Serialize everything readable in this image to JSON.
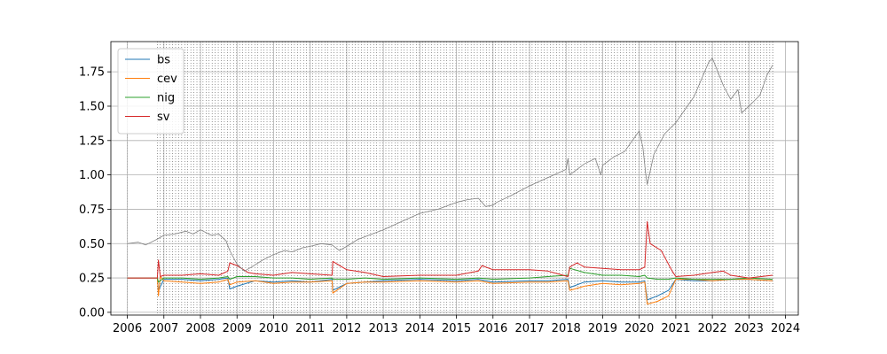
{
  "chart_data": {
    "type": "line",
    "title": "",
    "xlabel": "",
    "ylabel": "",
    "xlim": [
      2005.55,
      2024.35
    ],
    "ylim": [
      -0.02,
      1.97
    ],
    "grid": true,
    "legend_position": "top-left",
    "x_ticks": [
      "2006",
      "2007",
      "2008",
      "2009",
      "2010",
      "2011",
      "2012",
      "2013",
      "2014",
      "2015",
      "2016",
      "2017",
      "2018",
      "2019",
      "2020",
      "2021",
      "2022",
      "2023",
      "2024"
    ],
    "y_ticks": [
      "0.00",
      "0.25",
      "0.50",
      "0.75",
      "1.00",
      "1.25",
      "1.50",
      "1.75"
    ],
    "series": [
      {
        "name": "bs",
        "color": "#1f77b4",
        "x": [
          2006.0,
          2006.82,
          2006.85,
          2007.0,
          2007.5,
          2008.0,
          2008.5,
          2008.75,
          2008.8,
          2009.0,
          2009.5,
          2010.0,
          2010.5,
          2011.0,
          2011.6,
          2011.62,
          2012.0,
          2012.5,
          2013.0,
          2014.0,
          2015.0,
          2015.6,
          2016.0,
          2017.0,
          2017.5,
          2018.05,
          2018.1,
          2018.5,
          2019.0,
          2019.5,
          2020.0,
          2020.15,
          2020.22,
          2020.5,
          2020.8,
          2021.0,
          2021.5,
          2022.0,
          2022.5,
          2023.0,
          2023.65
        ],
        "y": [
          0.25,
          0.25,
          0.16,
          0.24,
          0.24,
          0.23,
          0.24,
          0.25,
          0.17,
          0.19,
          0.23,
          0.22,
          0.23,
          0.22,
          0.24,
          0.16,
          0.21,
          0.22,
          0.23,
          0.24,
          0.23,
          0.24,
          0.22,
          0.23,
          0.23,
          0.24,
          0.18,
          0.22,
          0.23,
          0.22,
          0.22,
          0.23,
          0.09,
          0.12,
          0.16,
          0.24,
          0.23,
          0.23,
          0.24,
          0.24,
          0.23
        ]
      },
      {
        "name": "cev",
        "color": "#ff7f0e",
        "x": [
          2006.0,
          2006.82,
          2006.85,
          2006.9,
          2007.0,
          2007.5,
          2008.0,
          2008.5,
          2008.75,
          2008.8,
          2009.0,
          2009.5,
          2010.0,
          2010.5,
          2011.0,
          2011.6,
          2011.62,
          2012.0,
          2012.5,
          2013.0,
          2014.0,
          2015.0,
          2015.6,
          2016.0,
          2017.0,
          2017.5,
          2018.05,
          2018.1,
          2018.5,
          2019.0,
          2019.5,
          2020.0,
          2020.15,
          2020.22,
          2020.5,
          2020.8,
          2021.0,
          2021.5,
          2022.0,
          2022.5,
          2023.0,
          2023.65
        ],
        "y": [
          0.25,
          0.25,
          0.12,
          0.26,
          0.23,
          0.22,
          0.21,
          0.22,
          0.24,
          0.2,
          0.22,
          0.23,
          0.21,
          0.22,
          0.22,
          0.23,
          0.14,
          0.21,
          0.22,
          0.22,
          0.23,
          0.22,
          0.23,
          0.21,
          0.22,
          0.22,
          0.23,
          0.16,
          0.19,
          0.21,
          0.2,
          0.21,
          0.22,
          0.06,
          0.08,
          0.12,
          0.24,
          0.24,
          0.23,
          0.24,
          0.24,
          0.23
        ]
      },
      {
        "name": "nig",
        "color": "#2ca02c",
        "x": [
          2006.0,
          2006.82,
          2006.85,
          2007.0,
          2007.5,
          2008.0,
          2008.5,
          2008.75,
          2008.8,
          2009.0,
          2009.5,
          2010.0,
          2010.5,
          2011.0,
          2011.6,
          2011.62,
          2012.0,
          2012.5,
          2013.0,
          2014.0,
          2015.0,
          2015.6,
          2016.0,
          2017.0,
          2017.5,
          2018.05,
          2018.1,
          2018.5,
          2019.0,
          2019.5,
          2020.0,
          2020.15,
          2020.22,
          2020.5,
          2020.8,
          2021.0,
          2021.5,
          2022.0,
          2022.5,
          2023.0,
          2023.65
        ],
        "y": [
          0.25,
          0.25,
          0.22,
          0.25,
          0.25,
          0.24,
          0.25,
          0.26,
          0.24,
          0.26,
          0.26,
          0.25,
          0.25,
          0.24,
          0.25,
          0.24,
          0.24,
          0.25,
          0.24,
          0.25,
          0.24,
          0.25,
          0.24,
          0.25,
          0.26,
          0.27,
          0.32,
          0.29,
          0.27,
          0.27,
          0.26,
          0.27,
          0.25,
          0.24,
          0.24,
          0.25,
          0.24,
          0.24,
          0.24,
          0.25,
          0.24
        ]
      },
      {
        "name": "sv",
        "color": "#d62728",
        "x": [
          2006.0,
          2006.82,
          2006.85,
          2006.9,
          2007.0,
          2007.5,
          2008.0,
          2008.5,
          2008.75,
          2008.8,
          2009.0,
          2009.3,
          2009.5,
          2010.0,
          2010.5,
          2011.0,
          2011.6,
          2011.62,
          2012.0,
          2012.5,
          2013.0,
          2014.0,
          2015.0,
          2015.6,
          2015.7,
          2016.0,
          2017.0,
          2017.5,
          2018.05,
          2018.1,
          2018.3,
          2018.5,
          2019.0,
          2019.5,
          2020.0,
          2020.15,
          2020.22,
          2020.3,
          2020.6,
          2020.9,
          2021.0,
          2021.5,
          2022.0,
          2022.3,
          2022.5,
          2023.0,
          2023.65
        ],
        "y": [
          0.25,
          0.25,
          0.38,
          0.26,
          0.27,
          0.27,
          0.28,
          0.27,
          0.3,
          0.36,
          0.34,
          0.29,
          0.28,
          0.27,
          0.29,
          0.28,
          0.27,
          0.37,
          0.31,
          0.29,
          0.26,
          0.27,
          0.27,
          0.3,
          0.34,
          0.31,
          0.31,
          0.3,
          0.26,
          0.33,
          0.36,
          0.33,
          0.32,
          0.31,
          0.31,
          0.33,
          0.66,
          0.5,
          0.45,
          0.3,
          0.26,
          0.27,
          0.29,
          0.3,
          0.27,
          0.25,
          0.27
        ]
      },
      {
        "name": "",
        "color": "#808080",
        "x": [
          2006.0,
          2006.3,
          2006.5,
          2006.8,
          2007.0,
          2007.3,
          2007.6,
          2007.8,
          2008.0,
          2008.3,
          2008.5,
          2008.7,
          2008.8,
          2009.0,
          2009.2,
          2009.4,
          2009.7,
          2010.0,
          2010.3,
          2010.5,
          2010.8,
          2011.0,
          2011.3,
          2011.6,
          2011.8,
          2012.0,
          2012.3,
          2012.6,
          2013.0,
          2013.5,
          2014.0,
          2014.5,
          2015.0,
          2015.3,
          2015.6,
          2015.8,
          2016.0,
          2016.1,
          2016.5,
          2017.0,
          2017.5,
          2018.0,
          2018.05,
          2018.1,
          2018.5,
          2018.8,
          2018.95,
          2019.0,
          2019.3,
          2019.6,
          2020.0,
          2020.1,
          2020.18,
          2020.22,
          2020.4,
          2020.7,
          2021.0,
          2021.5,
          2021.9,
          2022.0,
          2022.3,
          2022.5,
          2022.7,
          2022.8,
          2023.0,
          2023.3,
          2023.5,
          2023.65
        ],
        "y": [
          0.5,
          0.51,
          0.49,
          0.53,
          0.56,
          0.57,
          0.59,
          0.57,
          0.6,
          0.56,
          0.57,
          0.52,
          0.45,
          0.35,
          0.3,
          0.33,
          0.38,
          0.42,
          0.45,
          0.44,
          0.47,
          0.48,
          0.5,
          0.49,
          0.45,
          0.48,
          0.53,
          0.56,
          0.6,
          0.66,
          0.72,
          0.75,
          0.8,
          0.82,
          0.83,
          0.77,
          0.78,
          0.8,
          0.85,
          0.92,
          0.98,
          1.04,
          1.12,
          1.0,
          1.08,
          1.12,
          1.0,
          1.07,
          1.13,
          1.17,
          1.32,
          1.2,
          1.0,
          0.93,
          1.15,
          1.3,
          1.38,
          1.57,
          1.82,
          1.85,
          1.65,
          1.55,
          1.62,
          1.45,
          1.5,
          1.58,
          1.73,
          1.8
        ]
      }
    ]
  }
}
